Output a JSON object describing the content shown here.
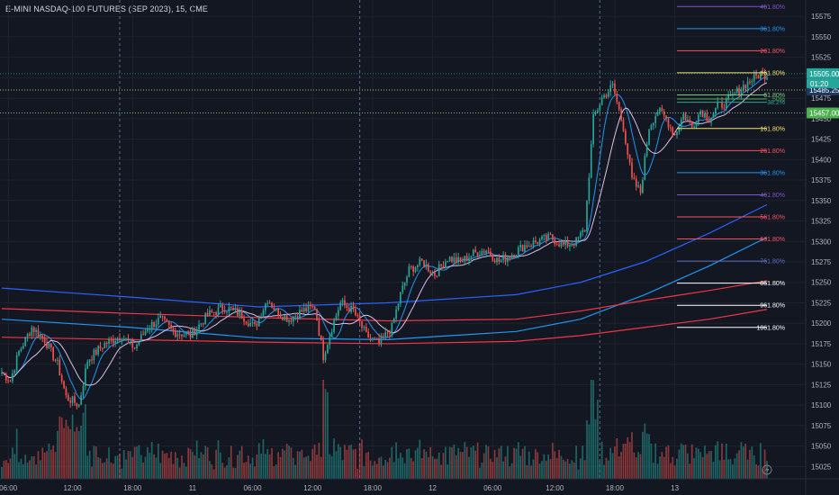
{
  "chart_data": {
    "type": "candlestick",
    "title": "E-MINI NASDAQ-100 FUTURES (SEP 2023), 15, CME",
    "x_ticks": [
      "06:00",
      "12:00",
      "18:00",
      "11",
      "06:00",
      "12:00",
      "18:00",
      "12",
      "06:00",
      "12:00",
      "18:00",
      "13"
    ],
    "y_ticks": [
      15575,
      15550,
      15525,
      15500,
      15475,
      15450,
      15425,
      15400,
      15375,
      15350,
      15325,
      15300,
      15275,
      15250,
      15225,
      15200,
      15175,
      15150,
      15125,
      15100,
      15075,
      15050,
      15025
    ],
    "ylim": [
      15010,
      15595
    ],
    "ohlc_anchors": [
      [
        0,
        15140
      ],
      [
        4,
        15130
      ],
      [
        8,
        15165
      ],
      [
        14,
        15195
      ],
      [
        20,
        15180
      ],
      [
        26,
        15150
      ],
      [
        30,
        15110
      ],
      [
        36,
        15100
      ],
      [
        40,
        15155
      ],
      [
        48,
        15175
      ],
      [
        56,
        15185
      ],
      [
        62,
        15170
      ],
      [
        68,
        15195
      ],
      [
        74,
        15205
      ],
      [
        80,
        15190
      ],
      [
        88,
        15185
      ],
      [
        96,
        15210
      ],
      [
        104,
        15220
      ],
      [
        112,
        15210
      ],
      [
        118,
        15195
      ],
      [
        124,
        15230
      ],
      [
        128,
        15215
      ],
      [
        134,
        15205
      ],
      [
        140,
        15215
      ],
      [
        146,
        15220
      ],
      [
        150,
        15160
      ],
      [
        154,
        15195
      ],
      [
        158,
        15225
      ],
      [
        164,
        15215
      ],
      [
        170,
        15185
      ],
      [
        176,
        15175
      ],
      [
        182,
        15195
      ],
      [
        186,
        15235
      ],
      [
        190,
        15265
      ],
      [
        196,
        15275
      ],
      [
        202,
        15260
      ],
      [
        208,
        15280
      ],
      [
        214,
        15275
      ],
      [
        220,
        15285
      ],
      [
        226,
        15290
      ],
      [
        232,
        15275
      ],
      [
        238,
        15285
      ],
      [
        244,
        15295
      ],
      [
        250,
        15300
      ],
      [
        256,
        15305
      ],
      [
        262,
        15295
      ],
      [
        268,
        15300
      ],
      [
        272,
        15315
      ],
      [
        276,
        15450
      ],
      [
        280,
        15475
      ],
      [
        285,
        15490
      ],
      [
        290,
        15440
      ],
      [
        294,
        15375
      ],
      [
        298,
        15360
      ],
      [
        302,
        15440
      ],
      [
        306,
        15460
      ],
      [
        310,
        15450
      ],
      [
        314,
        15430
      ],
      [
        318,
        15455
      ],
      [
        322,
        15440
      ],
      [
        326,
        15460
      ],
      [
        330,
        15450
      ],
      [
        334,
        15465
      ],
      [
        338,
        15470
      ],
      [
        342,
        15480
      ],
      [
        346,
        15490
      ],
      [
        350,
        15498
      ],
      [
        354,
        15505
      ],
      [
        357,
        15503
      ]
    ],
    "moving_averages": [
      {
        "name": "",
        "color": "#2962ff",
        "points": [
          [
            0,
            15243
          ],
          [
            60,
            15232
          ],
          [
            120,
            15220
          ],
          [
            180,
            15225
          ],
          [
            240,
            15235
          ],
          [
            270,
            15250
          ],
          [
            300,
            15275
          ],
          [
            330,
            15310
          ],
          [
            357,
            15345
          ]
        ]
      },
      {
        "name": "",
        "color": "#2196f3",
        "points": [
          [
            0,
            15205
          ],
          [
            60,
            15195
          ],
          [
            120,
            15182
          ],
          [
            180,
            15180
          ],
          [
            240,
            15190
          ],
          [
            270,
            15205
          ],
          [
            300,
            15235
          ],
          [
            330,
            15270
          ],
          [
            357,
            15305
          ]
        ]
      },
      {
        "name": "",
        "color": "#f23645",
        "points": [
          [
            0,
            15218
          ],
          [
            60,
            15212
          ],
          [
            120,
            15207
          ],
          [
            180,
            15203
          ],
          [
            240,
            15205
          ],
          [
            270,
            15215
          ],
          [
            300,
            15228
          ],
          [
            330,
            15240
          ],
          [
            357,
            15252
          ]
        ]
      },
      {
        "name": "",
        "color": "#f23645",
        "points": [
          [
            0,
            15183
          ],
          [
            60,
            15180
          ],
          [
            120,
            15177
          ],
          [
            180,
            15175
          ],
          [
            240,
            15178
          ],
          [
            270,
            15185
          ],
          [
            300,
            15195
          ],
          [
            330,
            15205
          ],
          [
            357,
            15217
          ]
        ]
      }
    ],
    "fib_levels_upper": [
      {
        "label": "461.80%",
        "value": 15587,
        "color": "#7e57c2"
      },
      {
        "label": "361.80%",
        "value": 15560,
        "color": "#2196f3"
      },
      {
        "label": "261.80%",
        "value": 15533,
        "color": "#f7525f"
      },
      {
        "label": "161.80%",
        "value": 15506,
        "color": "#f5e56b"
      },
      {
        "label": "61.80%",
        "value": 15479,
        "color": "#81c784"
      },
      {
        "label": "50%",
        "value": 15474,
        "color": "#4caf50"
      },
      {
        "label": "38.2%",
        "value": 15470,
        "color": "#26a69a"
      }
    ],
    "fib_levels_lower": [
      {
        "label": "161.80%",
        "value": 15438,
        "color": "#f5e56b"
      },
      {
        "label": "261.80%",
        "value": 15411,
        "color": "#f7525f"
      },
      {
        "label": "361.80%",
        "value": 15384,
        "color": "#2196f3"
      },
      {
        "label": "461.80%",
        "value": 15357,
        "color": "#7e57c2"
      },
      {
        "label": "561.80%",
        "value": 15330,
        "color": "#f7525f"
      },
      {
        "label": "661.80%",
        "value": 15303,
        "color": "#f7525f"
      },
      {
        "label": "761.80%",
        "value": 15276,
        "color": "#5c6bc0"
      },
      {
        "label": "861.80%",
        "value": 15249,
        "color": "#ffffff"
      },
      {
        "label": "961.80%",
        "value": 15222,
        "color": "#ffffff"
      },
      {
        "label": "1061.80%",
        "value": 15195,
        "color": "#ffffff"
      }
    ],
    "price_tags": [
      {
        "label": "15505.00",
        "value": 15505,
        "color": "#26a69a"
      },
      {
        "label": "15485.25",
        "value": 15485,
        "color": "#1e3a5f"
      },
      {
        "label": "15457.00",
        "value": 15457,
        "color": "#4caf50"
      }
    ],
    "countdown_label": "01:20",
    "colors": {
      "up": "#26a69a",
      "down": "#ef5350",
      "grid": "#1e222d",
      "text": "#b2b5be",
      "background": "#131722"
    }
  }
}
